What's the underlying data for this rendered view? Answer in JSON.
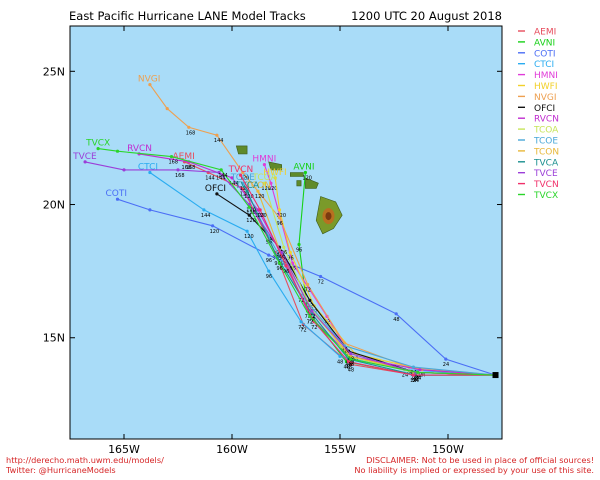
{
  "chart_data": {
    "type": "line",
    "title": "East Pacific Hurricane LANE Model Tracks",
    "subtitle": "1200 UTC 20 August 2018",
    "xlim": [
      -167.5,
      -147.5
    ],
    "ylim": [
      11.2,
      26.7
    ],
    "xticks": [
      {
        "v": -165,
        "label": "165W"
      },
      {
        "v": -160,
        "label": "160W"
      },
      {
        "v": -155,
        "label": "155W"
      },
      {
        "v": -150,
        "label": "150W"
      }
    ],
    "yticks": [
      {
        "v": 15,
        "label": "15N"
      },
      {
        "v": 20,
        "label": "20N"
      },
      {
        "v": 25,
        "label": "25N"
      }
    ],
    "grid": false,
    "legend_position": "right",
    "background": "#a9dcf8",
    "start_point": [
      -147.8,
      13.6
    ],
    "islands": [
      {
        "name": "Hawaii",
        "points": [
          [
            -155.9,
            20.3
          ],
          [
            -155.2,
            20.1
          ],
          [
            -154.9,
            19.6
          ],
          [
            -155.3,
            19.1
          ],
          [
            -155.8,
            18.9
          ],
          [
            -156.1,
            19.4
          ]
        ]
      },
      {
        "name": "Maui",
        "points": [
          [
            -156.6,
            21.0
          ],
          [
            -156.0,
            20.8
          ],
          [
            -156.1,
            20.6
          ],
          [
            -156.6,
            20.6
          ]
        ]
      },
      {
        "name": "Molokai",
        "points": [
          [
            -157.3,
            21.2
          ],
          [
            -156.7,
            21.2
          ],
          [
            -156.7,
            21.05
          ],
          [
            -157.3,
            21.05
          ]
        ]
      },
      {
        "name": "Oahu",
        "points": [
          [
            -158.3,
            21.6
          ],
          [
            -157.7,
            21.5
          ],
          [
            -157.7,
            21.3
          ],
          [
            -158.2,
            21.3
          ]
        ]
      },
      {
        "name": "Kauai",
        "points": [
          [
            -159.8,
            22.2
          ],
          [
            -159.3,
            22.2
          ],
          [
            -159.3,
            21.9
          ],
          [
            -159.7,
            21.9
          ]
        ]
      },
      {
        "name": "Lanai",
        "points": [
          [
            -157.0,
            20.9
          ],
          [
            -156.8,
            20.9
          ],
          [
            -156.8,
            20.7
          ],
          [
            -157.0,
            20.7
          ]
        ]
      }
    ],
    "series": [
      {
        "name": "AEMI",
        "color": "#e74c5c",
        "label": "AEMI",
        "hours": [
          24,
          48,
          72,
          96,
          120,
          144,
          168
        ],
        "points": [
          [
            -147.8,
            13.6
          ],
          [
            -151.5,
            13.6
          ],
          [
            -154.5,
            14.0
          ],
          [
            -156.7,
            15.5
          ],
          [
            -158.0,
            18.2
          ],
          [
            -159.5,
            20.6
          ],
          [
            -161.1,
            21.2
          ],
          [
            -162.2,
            21.6
          ]
        ]
      },
      {
        "name": "AVNI",
        "color": "#17d017",
        "label": "AVNI",
        "hours": [
          24,
          48,
          72,
          96,
          120
        ],
        "points": [
          [
            -147.8,
            13.6
          ],
          [
            -151.5,
            13.6
          ],
          [
            -154.7,
            14.1
          ],
          [
            -156.5,
            16.0
          ],
          [
            -156.9,
            18.5
          ],
          [
            -156.6,
            21.2
          ]
        ]
      },
      {
        "name": "COTI",
        "color": "#4b6ef5",
        "label": "COTI",
        "hours": [
          24,
          48,
          72,
          96,
          120
        ],
        "points": [
          [
            -147.8,
            13.6
          ],
          [
            -150.1,
            14.2
          ],
          [
            -152.4,
            15.9
          ],
          [
            -155.9,
            17.3
          ],
          [
            -158.3,
            18.1
          ],
          [
            -160.9,
            19.2
          ],
          [
            -163.8,
            19.8
          ],
          [
            -165.3,
            20.2
          ]
        ]
      },
      {
        "name": "CTCI",
        "color": "#2aacf0",
        "label": "CTCI",
        "hours": [
          24,
          48,
          72,
          96,
          120,
          144
        ],
        "points": [
          [
            -147.8,
            13.6
          ],
          [
            -152.0,
            13.8
          ],
          [
            -155.0,
            14.3
          ],
          [
            -156.8,
            15.6
          ],
          [
            -158.3,
            17.5
          ],
          [
            -159.3,
            19.0
          ],
          [
            -161.3,
            19.8
          ],
          [
            -163.8,
            21.2
          ]
        ]
      },
      {
        "name": "HMNI",
        "color": "#e03bd8",
        "label": "HMNI",
        "hours": [
          24,
          48,
          72,
          96,
          120
        ],
        "points": [
          [
            -147.8,
            13.6
          ],
          [
            -151.5,
            13.7
          ],
          [
            -154.5,
            14.3
          ],
          [
            -155.6,
            15.8
          ],
          [
            -157.2,
            17.8
          ],
          [
            -158.2,
            20.8
          ],
          [
            -158.5,
            21.5
          ]
        ]
      },
      {
        "name": "HWFI",
        "color": "#f2d02a",
        "label": "HWFI",
        "hours": [
          24,
          48,
          72,
          96,
          120
        ],
        "points": [
          [
            -147.8,
            13.6
          ],
          [
            -151.2,
            13.8
          ],
          [
            -154.3,
            14.4
          ],
          [
            -156.2,
            16.2
          ],
          [
            -157.3,
            18.2
          ],
          [
            -157.8,
            19.8
          ],
          [
            -158.0,
            21.0
          ]
        ]
      },
      {
        "name": "NVGI",
        "color": "#eea050",
        "label": "NVGI",
        "hours": [
          24,
          48,
          72,
          96,
          120,
          144,
          168
        ],
        "points": [
          [
            -147.8,
            13.6
          ],
          [
            -151.8,
            13.9
          ],
          [
            -154.8,
            14.8
          ],
          [
            -156.5,
            17.0
          ],
          [
            -157.8,
            19.5
          ],
          [
            -159.5,
            21.2
          ],
          [
            -160.7,
            22.6
          ],
          [
            -162.0,
            22.9
          ],
          [
            -163.0,
            23.6
          ],
          [
            -163.8,
            24.5
          ]
        ]
      },
      {
        "name": "OFCI",
        "color": "#111111",
        "label": "OFCI",
        "hours": [
          24,
          48,
          72,
          96,
          120
        ],
        "points": [
          [
            -147.8,
            13.6
          ],
          [
            -151.5,
            13.7
          ],
          [
            -154.6,
            14.5
          ],
          [
            -156.4,
            16.4
          ],
          [
            -157.8,
            18.4
          ],
          [
            -159.2,
            19.6
          ],
          [
            -160.7,
            20.4
          ]
        ]
      },
      {
        "name": "RVCN",
        "color": "#c02cd0",
        "label": "RVCN",
        "hours": [
          24,
          48,
          72,
          96,
          120,
          144,
          168
        ],
        "points": [
          [
            -147.8,
            13.6
          ],
          [
            -151.3,
            13.8
          ],
          [
            -154.5,
            14.3
          ],
          [
            -156.4,
            15.8
          ],
          [
            -157.6,
            18.0
          ],
          [
            -158.8,
            19.8
          ],
          [
            -160.0,
            21.0
          ],
          [
            -162.0,
            21.6
          ],
          [
            -164.3,
            21.9
          ]
        ]
      },
      {
        "name": "TCOA",
        "color": "#c7e45a",
        "label": "TCOA",
        "hours": [
          24,
          48,
          72,
          96,
          120
        ],
        "points": [
          [
            -147.8,
            13.6
          ],
          [
            -151.6,
            13.7
          ],
          [
            -154.6,
            14.3
          ],
          [
            -156.4,
            16.2
          ],
          [
            -157.6,
            18.4
          ],
          [
            -158.5,
            20.8
          ]
        ]
      },
      {
        "name": "TCOE",
        "color": "#4aa8d8",
        "label": "TCOE",
        "hours": [
          24,
          48,
          72,
          96,
          120
        ],
        "points": [
          [
            -147.8,
            13.6
          ],
          [
            -151.6,
            13.9
          ],
          [
            -154.8,
            14.7
          ],
          [
            -156.8,
            16.6
          ],
          [
            -158.3,
            18.8
          ],
          [
            -159.5,
            20.8
          ]
        ]
      },
      {
        "name": "TCON",
        "color": "#e8b83a",
        "label": "TCON",
        "hours": [
          24,
          48,
          72,
          96,
          120
        ],
        "points": [
          [
            -147.8,
            13.6
          ],
          [
            -151.4,
            13.7
          ],
          [
            -154.5,
            14.3
          ],
          [
            -156.3,
            16.0
          ],
          [
            -157.8,
            18.3
          ],
          [
            -158.8,
            20.5
          ]
        ]
      },
      {
        "name": "TVCA",
        "color": "#1a8f8f",
        "label": "TVCA",
        "hours": [
          24,
          48,
          72,
          96,
          120
        ],
        "points": [
          [
            -147.8,
            13.6
          ],
          [
            -151.5,
            13.6
          ],
          [
            -154.6,
            14.2
          ],
          [
            -156.3,
            15.9
          ],
          [
            -157.9,
            18.0
          ],
          [
            -159.3,
            20.5
          ]
        ]
      },
      {
        "name": "TVCE",
        "color": "#9b3ed8",
        "label": "TVCE",
        "hours": [
          24,
          48,
          72,
          96,
          120,
          144,
          168
        ],
        "points": [
          [
            -147.8,
            13.6
          ],
          [
            -151.5,
            13.7
          ],
          [
            -154.5,
            14.4
          ],
          [
            -156.3,
            16.0
          ],
          [
            -157.7,
            18.2
          ],
          [
            -159.2,
            20.0
          ],
          [
            -160.6,
            21.2
          ],
          [
            -162.5,
            21.3
          ],
          [
            -165.0,
            21.3
          ],
          [
            -166.8,
            21.6
          ]
        ]
      },
      {
        "name": "TVCN",
        "color": "#f0306a",
        "label": "TVCN",
        "hours": [
          24,
          48,
          72,
          96,
          120
        ],
        "points": [
          [
            -147.8,
            13.6
          ],
          [
            -151.6,
            13.6
          ],
          [
            -154.6,
            14.1
          ],
          [
            -156.2,
            15.6
          ],
          [
            -157.5,
            17.7
          ],
          [
            -158.7,
            19.8
          ],
          [
            -159.6,
            21.1
          ]
        ]
      },
      {
        "name": "TVCX",
        "color": "#2ad52a",
        "label": "TVCX",
        "hours": [
          24,
          48,
          72,
          96,
          120,
          144,
          168
        ],
        "points": [
          [
            -147.8,
            13.6
          ],
          [
            -151.4,
            13.7
          ],
          [
            -154.5,
            14.2
          ],
          [
            -156.4,
            15.8
          ],
          [
            -157.8,
            17.8
          ],
          [
            -159.2,
            19.9
          ],
          [
            -160.5,
            21.3
          ],
          [
            -162.8,
            21.8
          ],
          [
            -165.3,
            22.0
          ],
          [
            -166.2,
            22.1
          ]
        ]
      }
    ]
  },
  "footer": {
    "url": "http://derecho.math.uwm.edu/models/",
    "twitter": "Twitter: @HurricaneModels",
    "disclaimer": "DISCLAIMER: Not to be used in place of official sources!",
    "liability": "No liability is implied or expressed by your use of this site."
  }
}
